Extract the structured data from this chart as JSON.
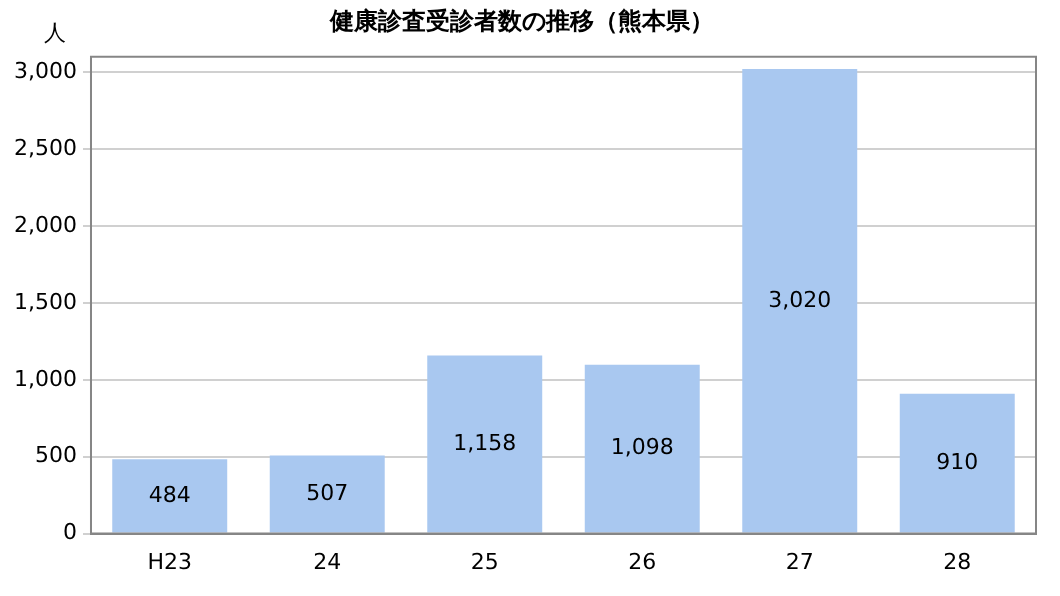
{
  "chart_data": {
    "type": "bar",
    "title": "健康診査受診者数の推移（熊本県）",
    "ylabel": "人",
    "categories": [
      "H23",
      "24",
      "25",
      "26",
      "27",
      "28"
    ],
    "values": [
      484,
      507,
      1158,
      1098,
      3020,
      910
    ],
    "value_labels": [
      "484",
      "507",
      "1,158",
      "1,098",
      "3,020",
      "910"
    ],
    "color": "#a9c8f0",
    "ylim": [
      0,
      3100
    ],
    "yticks": [
      {
        "value": 0,
        "label": "0"
      },
      {
        "value": 500,
        "label": "500"
      },
      {
        "value": 1000,
        "label": "1,000"
      },
      {
        "value": 1500,
        "label": "1,500"
      },
      {
        "value": 2000,
        "label": "2,000"
      },
      {
        "value": 2500,
        "label": "2,500"
      },
      {
        "value": 3000,
        "label": "3,000"
      }
    ],
    "grid": "y",
    "legend": false
  }
}
